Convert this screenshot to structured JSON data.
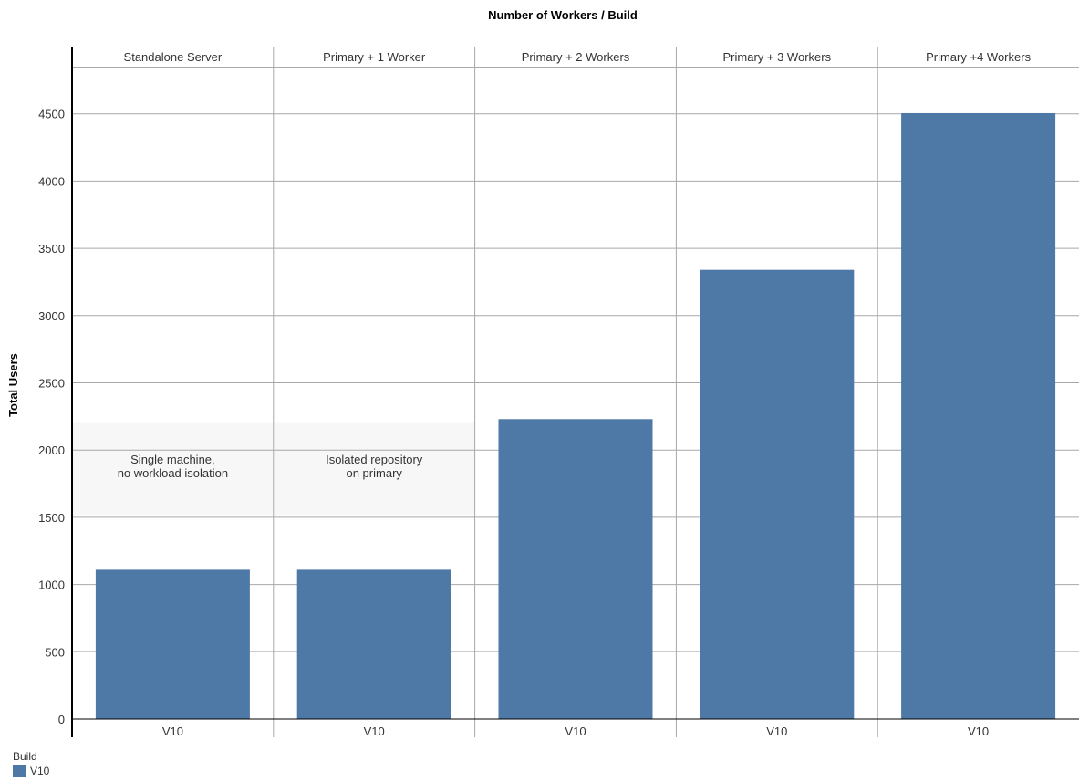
{
  "chart_data": {
    "type": "bar",
    "title": "Number of Workers / Build",
    "ylabel": "Total Users",
    "xlabel": "",
    "ylim": [
      0,
      4900
    ],
    "yticks": [
      0,
      500,
      1000,
      1500,
      2000,
      2500,
      3000,
      3500,
      4000,
      4500
    ],
    "columns": [
      "Standalone Server",
      "Primary + 1 Worker",
      "Primary + 2 Workers",
      "Primary + 3 Workers",
      "Primary +4 Workers"
    ],
    "categories": [
      "V10",
      "V10",
      "V10",
      "V10",
      "V10"
    ],
    "series": [
      {
        "name": "V10",
        "color": "#4e79a7",
        "values": [
          1110,
          1110,
          2230,
          3340,
          4505
        ]
      }
    ],
    "annotations": [
      {
        "column": 0,
        "text": [
          "Single machine,",
          "no workload isolation"
        ],
        "band": [
          1520,
          2200
        ]
      },
      {
        "column": 1,
        "text": [
          "Isolated repository",
          "on primary"
        ],
        "band": [
          1520,
          2200
        ]
      }
    ],
    "grid": true,
    "legend": {
      "title": "Build",
      "position": "bottom-left"
    }
  }
}
